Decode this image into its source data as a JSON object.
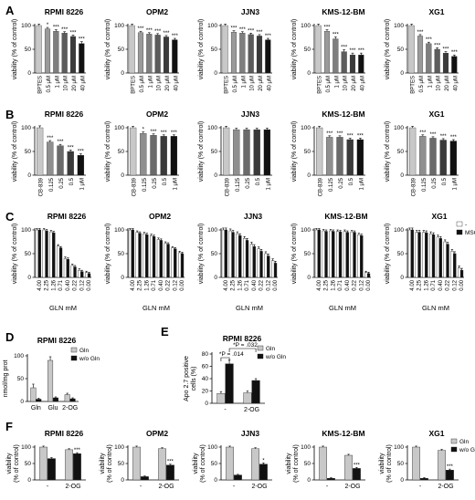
{
  "panel_labels": [
    "A",
    "B",
    "C",
    "D",
    "E",
    "F"
  ],
  "colors": {
    "gray_light": "#c8c8c8",
    "gray_mid": "#8f8f8f",
    "gray_dark": "#5a5a5a",
    "black": "#111111",
    "white": "#ffffff"
  },
  "chart_data": [
    {
      "id": "A1",
      "row": "A",
      "type": "bar",
      "title": "RPMI 8226",
      "ylabel": "viability (% of control)",
      "ylim": [
        0,
        100
      ],
      "yticks": [
        0,
        50,
        100
      ],
      "categories": [
        "BPTES",
        "0.5 μM",
        "1 μM",
        "10 μM",
        "20 μM",
        "40 μM"
      ],
      "values": [
        100,
        93,
        88,
        84,
        77,
        62
      ],
      "errors": [
        3,
        3,
        3,
        3,
        3,
        4
      ],
      "colors": [
        "#c8c8c8",
        "#9a9a9a",
        "#7e7e7e",
        "#5c5c5c",
        "#3a3a3a",
        "#111111"
      ],
      "sig": [
        "",
        "*",
        "***",
        "***",
        "***",
        "***"
      ]
    },
    {
      "id": "A2",
      "row": "A",
      "type": "bar",
      "title": "OPM2",
      "ylabel": "viability (% of control)",
      "ylim": [
        0,
        100
      ],
      "yticks": [
        0,
        50,
        100
      ],
      "categories": [
        "BPTES",
        "0.5 μM",
        "1 μM",
        "10 μM",
        "20 μM",
        "40 μM"
      ],
      "values": [
        100,
        85,
        82,
        80,
        76,
        70
      ],
      "errors": [
        3,
        3,
        3,
        3,
        3,
        3
      ],
      "colors": [
        "#c8c8c8",
        "#9a9a9a",
        "#7e7e7e",
        "#5c5c5c",
        "#3a3a3a",
        "#111111"
      ],
      "sig": [
        "",
        "***",
        "***",
        "***",
        "***",
        "***"
      ]
    },
    {
      "id": "A3",
      "row": "A",
      "type": "bar",
      "title": "JJN3",
      "ylabel": "viability (% of control)",
      "ylim": [
        0,
        100
      ],
      "yticks": [
        0,
        50,
        100
      ],
      "categories": [
        "BPTES",
        "0.5 μM",
        "1 μM",
        "10 μM",
        "20 μM",
        "40 μM"
      ],
      "values": [
        100,
        86,
        84,
        81,
        78,
        70
      ],
      "errors": [
        3,
        3,
        3,
        3,
        3,
        3
      ],
      "colors": [
        "#c8c8c8",
        "#9a9a9a",
        "#7e7e7e",
        "#5c5c5c",
        "#3a3a3a",
        "#111111"
      ],
      "sig": [
        "",
        "***",
        "***",
        "***",
        "***",
        "***"
      ]
    },
    {
      "id": "A4",
      "row": "A",
      "type": "bar",
      "title": "KMS-12-BM",
      "ylabel": "viability (% of control)",
      "ylim": [
        0,
        100
      ],
      "yticks": [
        0,
        50,
        100
      ],
      "categories": [
        "BPTES",
        "0.5 μM",
        "1 μM",
        "10 μM",
        "20 μM",
        "40 μM"
      ],
      "values": [
        100,
        88,
        72,
        45,
        38,
        38
      ],
      "errors": [
        3,
        3,
        4,
        4,
        4,
        4
      ],
      "colors": [
        "#c8c8c8",
        "#9a9a9a",
        "#7e7e7e",
        "#5c5c5c",
        "#3a3a3a",
        "#111111"
      ],
      "sig": [
        "",
        "***",
        "***",
        "***",
        "***",
        "***"
      ]
    },
    {
      "id": "A5",
      "row": "A",
      "type": "bar",
      "title": "XG1",
      "ylabel": "viability (% of control)",
      "ylim": [
        0,
        100
      ],
      "yticks": [
        0,
        50,
        100
      ],
      "categories": [
        "BPTES",
        "0.5 μM",
        "1 μM",
        "10 μM",
        "20 μM",
        "40 μM"
      ],
      "values": [
        100,
        78,
        62,
        50,
        42,
        35
      ],
      "errors": [
        3,
        3,
        3,
        3,
        3,
        3
      ],
      "colors": [
        "#c8c8c8",
        "#9a9a9a",
        "#7e7e7e",
        "#5c5c5c",
        "#3a3a3a",
        "#111111"
      ],
      "sig": [
        "",
        "***",
        "***",
        "***",
        "***",
        "***"
      ]
    },
    {
      "id": "B1",
      "row": "B",
      "type": "bar",
      "title": "RPMI 8226",
      "ylabel": "viability (% of control)",
      "ylim": [
        0,
        100
      ],
      "yticks": [
        0,
        50,
        100
      ],
      "categories": [
        "CB-839",
        "0.125",
        "0.25",
        "0.5",
        "1 μM"
      ],
      "values": [
        100,
        70,
        62,
        50,
        42
      ],
      "errors": [
        4,
        3,
        3,
        3,
        3
      ],
      "colors": [
        "#c8c8c8",
        "#8f8f8f",
        "#6a6a6a",
        "#3a3a3a",
        "#111111"
      ],
      "sig": [
        "",
        "***",
        "***",
        "***",
        "***"
      ]
    },
    {
      "id": "B2",
      "row": "B",
      "type": "bar",
      "title": "OPM2",
      "ylabel": "viability (% of control)",
      "ylim": [
        0,
        100
      ],
      "yticks": [
        0,
        50,
        100
      ],
      "categories": [
        "CB-839",
        "0.125",
        "0.25",
        "0.5",
        "1 μM"
      ],
      "values": [
        100,
        88,
        84,
        82,
        82
      ],
      "errors": [
        3,
        3,
        3,
        3,
        3
      ],
      "colors": [
        "#c8c8c8",
        "#8f8f8f",
        "#6a6a6a",
        "#3a3a3a",
        "#111111"
      ],
      "sig": [
        "",
        "*",
        "***",
        "***",
        "***"
      ]
    },
    {
      "id": "B3",
      "row": "B",
      "type": "bar",
      "title": "JJN3",
      "ylabel": "viability (% of control)",
      "ylim": [
        0,
        100
      ],
      "yticks": [
        0,
        50,
        100
      ],
      "categories": [
        "CB-839",
        "0.125",
        "0.25",
        "0.5",
        "1 μM"
      ],
      "values": [
        100,
        96,
        96,
        96,
        96
      ],
      "errors": [
        3,
        3,
        3,
        3,
        3
      ],
      "colors": [
        "#c8c8c8",
        "#8f8f8f",
        "#6a6a6a",
        "#3a3a3a",
        "#111111"
      ],
      "sig": [
        "",
        "",
        "",
        "",
        ""
      ]
    },
    {
      "id": "B4",
      "row": "B",
      "type": "bar",
      "title": "KMS-12-BM",
      "ylabel": "viability (% of control)",
      "ylim": [
        0,
        100
      ],
      "yticks": [
        0,
        50,
        100
      ],
      "categories": [
        "CB-839",
        "0.125",
        "0.25",
        "0.5",
        "1 μM"
      ],
      "values": [
        100,
        80,
        80,
        75,
        75
      ],
      "errors": [
        3,
        3,
        3,
        3,
        3
      ],
      "colors": [
        "#c8c8c8",
        "#8f8f8f",
        "#6a6a6a",
        "#3a3a3a",
        "#111111"
      ],
      "sig": [
        "",
        "***",
        "***",
        "***",
        "***"
      ]
    },
    {
      "id": "B5",
      "row": "B",
      "type": "bar",
      "title": "XG1",
      "ylabel": "viability (% of control)",
      "ylim": [
        0,
        100
      ],
      "yticks": [
        0,
        50,
        100
      ],
      "categories": [
        "CB-839",
        "0.125",
        "0.25",
        "0.5",
        "1 μM"
      ],
      "values": [
        100,
        82,
        78,
        74,
        72
      ],
      "errors": [
        3,
        3,
        3,
        3,
        3
      ],
      "colors": [
        "#c8c8c8",
        "#8f8f8f",
        "#6a6a6a",
        "#3a3a3a",
        "#111111"
      ],
      "sig": [
        "",
        "***",
        "***",
        "***",
        "***"
      ]
    },
    {
      "id": "C1",
      "row": "C",
      "type": "bar",
      "title": "RPMI 8226",
      "ylabel": "viability (% of control)",
      "xlabel": "GLN mM",
      "ylim": [
        0,
        100
      ],
      "yticks": [
        0,
        50,
        100
      ],
      "categories": [
        "4.00",
        "2.25",
        "1.26",
        "0.71",
        "0.40",
        "0.22",
        "0.12",
        "0.00"
      ],
      "series": [
        {
          "values": [
            100,
            100,
            96,
            66,
            40,
            25,
            15,
            10
          ],
          "errors": [
            3,
            3,
            3,
            3,
            3,
            3,
            3,
            3
          ]
        },
        {
          "values": [
            100,
            98,
            94,
            62,
            38,
            22,
            12,
            8
          ],
          "errors": [
            3,
            3,
            3,
            3,
            3,
            3,
            3,
            3
          ]
        }
      ]
    },
    {
      "id": "C2",
      "row": "C",
      "type": "bar",
      "title": "OPM2",
      "ylabel": "viability (% of control)",
      "xlabel": "GLN mM",
      "ylim": [
        0,
        100
      ],
      "yticks": [
        0,
        50,
        100
      ],
      "categories": [
        "4.00",
        "2.25",
        "1.26",
        "0.71",
        "0.40",
        "0.22",
        "0.12",
        "0.00"
      ],
      "series": [
        {
          "values": [
            100,
            95,
            92,
            88,
            80,
            72,
            62,
            52
          ],
          "errors": [
            3,
            3,
            3,
            3,
            3,
            3,
            3,
            3
          ]
        },
        {
          "values": [
            100,
            93,
            90,
            86,
            78,
            70,
            60,
            50
          ],
          "errors": [
            3,
            3,
            3,
            3,
            3,
            3,
            3,
            3
          ]
        }
      ]
    },
    {
      "id": "C3",
      "row": "C",
      "type": "bar",
      "title": "JJN3",
      "ylabel": "viability (% of control)",
      "xlabel": "GLN mM",
      "ylim": [
        0,
        100
      ],
      "yticks": [
        0,
        50,
        100
      ],
      "categories": [
        "4.00",
        "2.25",
        "1.26",
        "0.71",
        "0.40",
        "0.22",
        "0.12",
        "0.00"
      ],
      "series": [
        {
          "values": [
            100,
            98,
            92,
            82,
            70,
            60,
            50,
            35
          ],
          "errors": [
            4,
            4,
            4,
            4,
            4,
            4,
            4,
            4
          ]
        },
        {
          "values": [
            100,
            95,
            88,
            78,
            65,
            55,
            45,
            30
          ],
          "errors": [
            4,
            4,
            4,
            4,
            4,
            4,
            4,
            4
          ]
        }
      ]
    },
    {
      "id": "C4",
      "row": "C",
      "type": "bar",
      "title": "KMS-12-BM",
      "ylabel": "viability (% of control)",
      "xlabel": "GLN mM",
      "ylim": [
        0,
        100
      ],
      "yticks": [
        0,
        50,
        100
      ],
      "categories": [
        "4.00",
        "2.25",
        "1.26",
        "0.71",
        "0.40",
        "0.22",
        "0.12",
        "0.00"
      ],
      "series": [
        {
          "values": [
            100,
            98,
            98,
            97,
            97,
            96,
            90,
            10
          ],
          "errors": [
            3,
            3,
            3,
            3,
            3,
            3,
            3,
            3
          ]
        },
        {
          "values": [
            100,
            97,
            97,
            96,
            95,
            95,
            88,
            8
          ],
          "errors": [
            3,
            3,
            3,
            3,
            3,
            3,
            3,
            3
          ]
        }
      ]
    },
    {
      "id": "C5",
      "row": "C",
      "type": "bar",
      "title": "XG1",
      "ylabel": "viability (% of control)",
      "xlabel": "GLN mM",
      "ylim": [
        0,
        100
      ],
      "yticks": [
        0,
        50,
        100
      ],
      "categories": [
        "4.00",
        "2.25",
        "1.26",
        "0.71",
        "0.40",
        "0.22",
        "0.12",
        "0.00"
      ],
      "series": [
        {
          "name": "-",
          "values": [
            100,
            95,
            95,
            92,
            85,
            75,
            55,
            20
          ],
          "errors": [
            4,
            4,
            4,
            4,
            4,
            4,
            4,
            4
          ]
        },
        {
          "name": "MSO",
          "values": [
            100,
            95,
            94,
            90,
            82,
            70,
            50,
            15
          ],
          "errors": [
            4,
            4,
            4,
            4,
            4,
            4,
            4,
            4
          ]
        }
      ],
      "legend": "top-right"
    },
    {
      "id": "D",
      "row": "D",
      "type": "bar",
      "title": "RPMI 8226",
      "ylabel": "nmol/mg prot",
      "ylim": [
        0,
        100
      ],
      "yticks": [
        0,
        50,
        100
      ],
      "categories": [
        "Gln",
        "Glu",
        "2-OG"
      ],
      "series": [
        {
          "name": "Gln",
          "values": [
            30,
            90,
            15
          ],
          "errors": [
            8,
            8,
            3
          ]
        },
        {
          "name": "w/o Gln",
          "values": [
            5,
            8,
            6
          ],
          "errors": [
            2,
            2,
            2
          ]
        }
      ],
      "legend": "top-right"
    },
    {
      "id": "E",
      "row": "E",
      "type": "bar",
      "title": "RPMI 8226",
      "ylabel": "Apo 2.7 positive cells (%)",
      "ylim": [
        0,
        80
      ],
      "yticks": [
        0,
        20,
        40,
        60,
        80
      ],
      "categories": [
        "-",
        "2-OG"
      ],
      "series": [
        {
          "name": "Gln",
          "values": [
            16,
            17
          ],
          "errors": [
            3,
            3
          ]
        },
        {
          "name": "w/o Gln",
          "values": [
            64,
            37
          ],
          "errors": [
            6,
            3
          ]
        }
      ],
      "annotations": [
        "P = .014",
        "P = .032"
      ],
      "legend": "top-right"
    },
    {
      "id": "F1",
      "row": "F",
      "type": "bar",
      "title": "RPMI 8226",
      "ylabel": "viability (% of control)",
      "ylim": [
        0,
        100
      ],
      "yticks": [
        0,
        50,
        100
      ],
      "categories": [
        "-",
        "2-OG"
      ],
      "series": [
        {
          "name": "Gln",
          "values": [
            100,
            92
          ],
          "errors": [
            3,
            3
          ]
        },
        {
          "name": "w/o Gln",
          "values": [
            65,
            80
          ],
          "errors": [
            3,
            3
          ]
        }
      ],
      "sig": [
        "",
        "",
        " ",
        "***"
      ]
    },
    {
      "id": "F2",
      "row": "F",
      "type": "bar",
      "title": "OPM2",
      "ylabel": "viability (% of control)",
      "ylim": [
        0,
        100
      ],
      "yticks": [
        0,
        50,
        100
      ],
      "categories": [
        "-",
        "2-OG"
      ],
      "series": [
        {
          "name": "Gln",
          "values": [
            100,
            95
          ],
          "errors": [
            3,
            3
          ]
        },
        {
          "name": "w/o Gln",
          "values": [
            10,
            45
          ],
          "errors": [
            2,
            3
          ]
        }
      ],
      "sig": [
        "",
        "",
        "",
        "***"
      ]
    },
    {
      "id": "F3",
      "row": "F",
      "type": "bar",
      "title": "JJN3",
      "ylabel": "viability (% of control)",
      "ylim": [
        0,
        100
      ],
      "yticks": [
        0,
        50,
        100
      ],
      "categories": [
        "-",
        "2-OG"
      ],
      "series": [
        {
          "name": "Gln",
          "values": [
            100,
            95
          ],
          "errors": [
            3,
            3
          ]
        },
        {
          "name": "w/o Gln",
          "values": [
            15,
            48
          ],
          "errors": [
            2,
            4
          ]
        }
      ],
      "sig": [
        "",
        "",
        "",
        "*"
      ]
    },
    {
      "id": "F4",
      "row": "F",
      "type": "bar",
      "title": "KMS-12-BM",
      "ylabel": "viability (% of control)",
      "ylim": [
        0,
        100
      ],
      "yticks": [
        0,
        50,
        100
      ],
      "categories": [
        "-",
        "2-OG"
      ],
      "series": [
        {
          "name": "Gln",
          "values": [
            100,
            75
          ],
          "errors": [
            3,
            3
          ]
        },
        {
          "name": "w/o Gln",
          "values": [
            5,
            35
          ],
          "errors": [
            2,
            3
          ]
        }
      ],
      "sig": [
        "",
        "",
        "",
        "***"
      ]
    },
    {
      "id": "F5",
      "row": "F",
      "type": "bar",
      "title": "XG1",
      "ylabel": "viability (% of control)",
      "ylim": [
        0,
        100
      ],
      "yticks": [
        0,
        50,
        100
      ],
      "categories": [
        "-",
        "2-OG"
      ],
      "series": [
        {
          "name": "Gln",
          "values": [
            100,
            90
          ],
          "errors": [
            3,
            3
          ]
        },
        {
          "name": "w/o Gln",
          "values": [
            5,
            30
          ],
          "errors": [
            2,
            3
          ]
        }
      ],
      "sig": [
        "",
        "",
        "",
        "***"
      ],
      "legend": "top-right"
    }
  ]
}
